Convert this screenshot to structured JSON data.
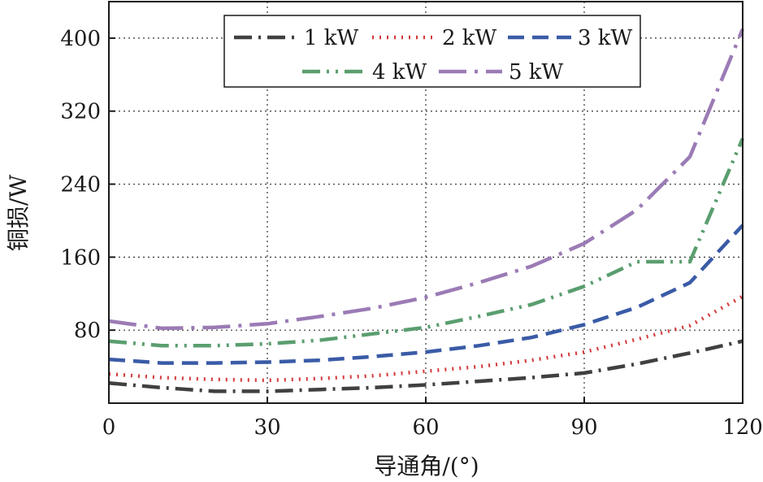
{
  "chart_data": {
    "type": "line",
    "title": "",
    "xlabel": "导通角/(°)",
    "ylabel": "铜损/W",
    "xlim": [
      0,
      120
    ],
    "ylim": [
      0,
      440
    ],
    "xticks": [
      0,
      30,
      60,
      90,
      120
    ],
    "yticks": [
      80,
      160,
      240,
      320,
      400
    ],
    "grid": true,
    "legend_position": "top-center",
    "series": [
      {
        "name": "1 kW",
        "color": "#404040",
        "dash": "dash-dot",
        "x": [
          0,
          10,
          20,
          30,
          40,
          50,
          60,
          70,
          80,
          90,
          100,
          110,
          120
        ],
        "y": [
          22,
          17,
          13,
          13,
          15,
          17,
          20,
          24,
          28,
          33,
          43,
          55,
          68
        ]
      },
      {
        "name": "2 kW",
        "color": "#d43a3a",
        "dash": "dotted",
        "x": [
          0,
          10,
          20,
          30,
          40,
          50,
          60,
          70,
          80,
          90,
          100,
          110,
          120
        ],
        "y": [
          32,
          28,
          26,
          25,
          27,
          30,
          35,
          40,
          47,
          56,
          70,
          85,
          117
        ]
      },
      {
        "name": "3 kW",
        "color": "#3a5ba6",
        "dash": "dashed",
        "x": [
          0,
          10,
          20,
          30,
          40,
          50,
          60,
          70,
          80,
          90,
          100,
          110,
          120
        ],
        "y": [
          48,
          44,
          44,
          45,
          47,
          51,
          56,
          63,
          72,
          86,
          105,
          132,
          195
        ]
      },
      {
        "name": "4 kW",
        "color": "#5a9e6f",
        "dash": "dash-dot-dot",
        "x": [
          0,
          10,
          20,
          30,
          40,
          50,
          60,
          70,
          80,
          90,
          100,
          110,
          120
        ],
        "y": [
          68,
          63,
          63,
          65,
          69,
          76,
          83,
          95,
          108,
          128,
          155,
          155,
          290
        ]
      },
      {
        "name": "5 kW",
        "color": "#9b7bb5",
        "dash": "long-dash-dot",
        "x": [
          0,
          10,
          20,
          30,
          40,
          50,
          60,
          70,
          80,
          90,
          100,
          110,
          120
        ],
        "y": [
          90,
          82,
          83,
          87,
          95,
          104,
          116,
          132,
          150,
          175,
          212,
          270,
          410
        ]
      }
    ]
  }
}
